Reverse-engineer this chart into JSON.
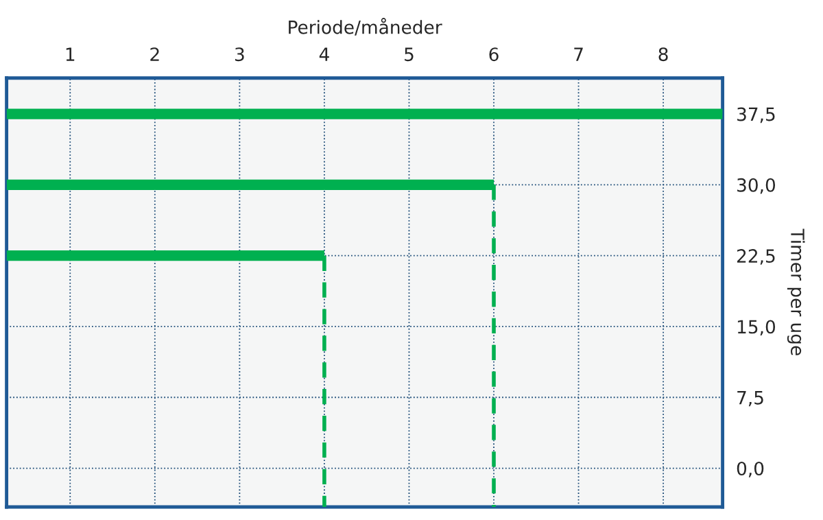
{
  "chart_data": {
    "type": "line",
    "xlabel": "Periode/måneder",
    "ylabel": "Timer per uge",
    "xlim": [
      0.25,
      8.7
    ],
    "ylim": [
      -4.1,
      41.3
    ],
    "xticks": [
      1,
      2,
      3,
      4,
      5,
      6,
      7,
      8
    ],
    "yticks": [
      {
        "value": 0,
        "label": "0,0"
      },
      {
        "value": 7.5,
        "label": "7,5"
      },
      {
        "value": 15,
        "label": "15,0"
      },
      {
        "value": 22.5,
        "label": "22,5"
      },
      {
        "value": 30,
        "label": "30,0"
      },
      {
        "value": 37.5,
        "label": "37,5"
      }
    ],
    "grid": true,
    "marker": "none",
    "series": [
      {
        "color": "#00b050",
        "x": [
          0.25,
          8.7
        ],
        "values": [
          37.5,
          37.5
        ],
        "line_style": "solid"
      },
      {
        "color": "#00b050",
        "x": [
          0.25,
          6
        ],
        "values": [
          30,
          30
        ],
        "line_style": "solid"
      },
      {
        "color": "#00b050",
        "x": [
          6,
          6
        ],
        "values": [
          30,
          -4.1
        ],
        "line_style": "dashed"
      },
      {
        "color": "#00b050",
        "x": [
          0.25,
          4
        ],
        "values": [
          22.5,
          22.5
        ],
        "line_style": "solid"
      },
      {
        "color": "#00b050",
        "x": [
          4,
          4
        ],
        "values": [
          22.5,
          -4.1
        ],
        "line_style": "dashed"
      }
    ]
  }
}
